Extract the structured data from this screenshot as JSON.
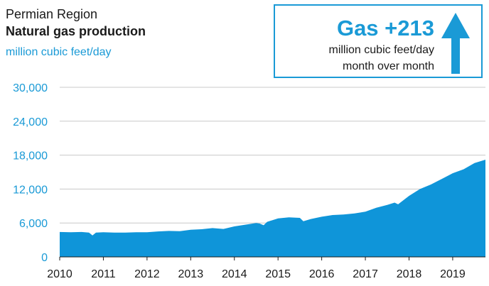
{
  "header": {
    "region": "Permian Region",
    "metric": "Natural gas production",
    "units": "million cubic feet/day"
  },
  "callout": {
    "value": "Gas +213",
    "line1": "million cubic feet/day",
    "line2": "month over month",
    "arrow_icon": "up-arrow-icon"
  },
  "colors": {
    "accent": "#1a9ad6",
    "area": "#0f95d9",
    "grid": "#c8c8c8",
    "text": "#1a1a1a"
  },
  "chart_data": {
    "type": "area",
    "title": "Natural gas production",
    "ylabel": "million cubic feet/day",
    "ylim": [
      0,
      30000
    ],
    "yticks": [
      0,
      6000,
      12000,
      18000,
      24000,
      30000
    ],
    "ytick_labels": [
      "0",
      "6,000",
      "12,000",
      "18,000",
      "24,000",
      "30,000"
    ],
    "xticks": [
      2010,
      2011,
      2012,
      2013,
      2014,
      2015,
      2016,
      2017,
      2018,
      2019
    ],
    "xtick_labels": [
      "2010",
      "2011",
      "2012",
      "2013",
      "2014",
      "2015",
      "2016",
      "2017",
      "2018",
      "2019"
    ],
    "xlim": [
      2010.0,
      2019.75
    ],
    "grid": true,
    "series": [
      {
        "x": [
          2010.0,
          2010.25,
          2010.5,
          2010.67,
          2010.75,
          2010.83,
          2011.0,
          2011.25,
          2011.5,
          2011.75,
          2012.0,
          2012.25,
          2012.5,
          2012.75,
          2013.0,
          2013.25,
          2013.5,
          2013.75,
          2014.0,
          2014.25,
          2014.5,
          2014.58,
          2014.67,
          2014.75,
          2015.0,
          2015.25,
          2015.5,
          2015.58,
          2015.75,
          2016.0,
          2016.25,
          2016.5,
          2016.75,
          2017.0,
          2017.25,
          2017.5,
          2017.67,
          2017.75,
          2018.0,
          2018.25,
          2018.5,
          2018.75,
          2019.0,
          2019.25,
          2019.5,
          2019.75
        ],
        "values": [
          4400,
          4350,
          4400,
          4300,
          3800,
          4300,
          4350,
          4300,
          4300,
          4350,
          4350,
          4500,
          4600,
          4550,
          4800,
          4900,
          5100,
          4950,
          5400,
          5700,
          6000,
          5900,
          5600,
          6200,
          6800,
          7000,
          6900,
          6300,
          6700,
          7100,
          7400,
          7500,
          7700,
          8000,
          8700,
          9200,
          9600,
          9300,
          10800,
          12000,
          12800,
          13800,
          14800,
          15500,
          16600,
          17200
        ]
      }
    ]
  }
}
